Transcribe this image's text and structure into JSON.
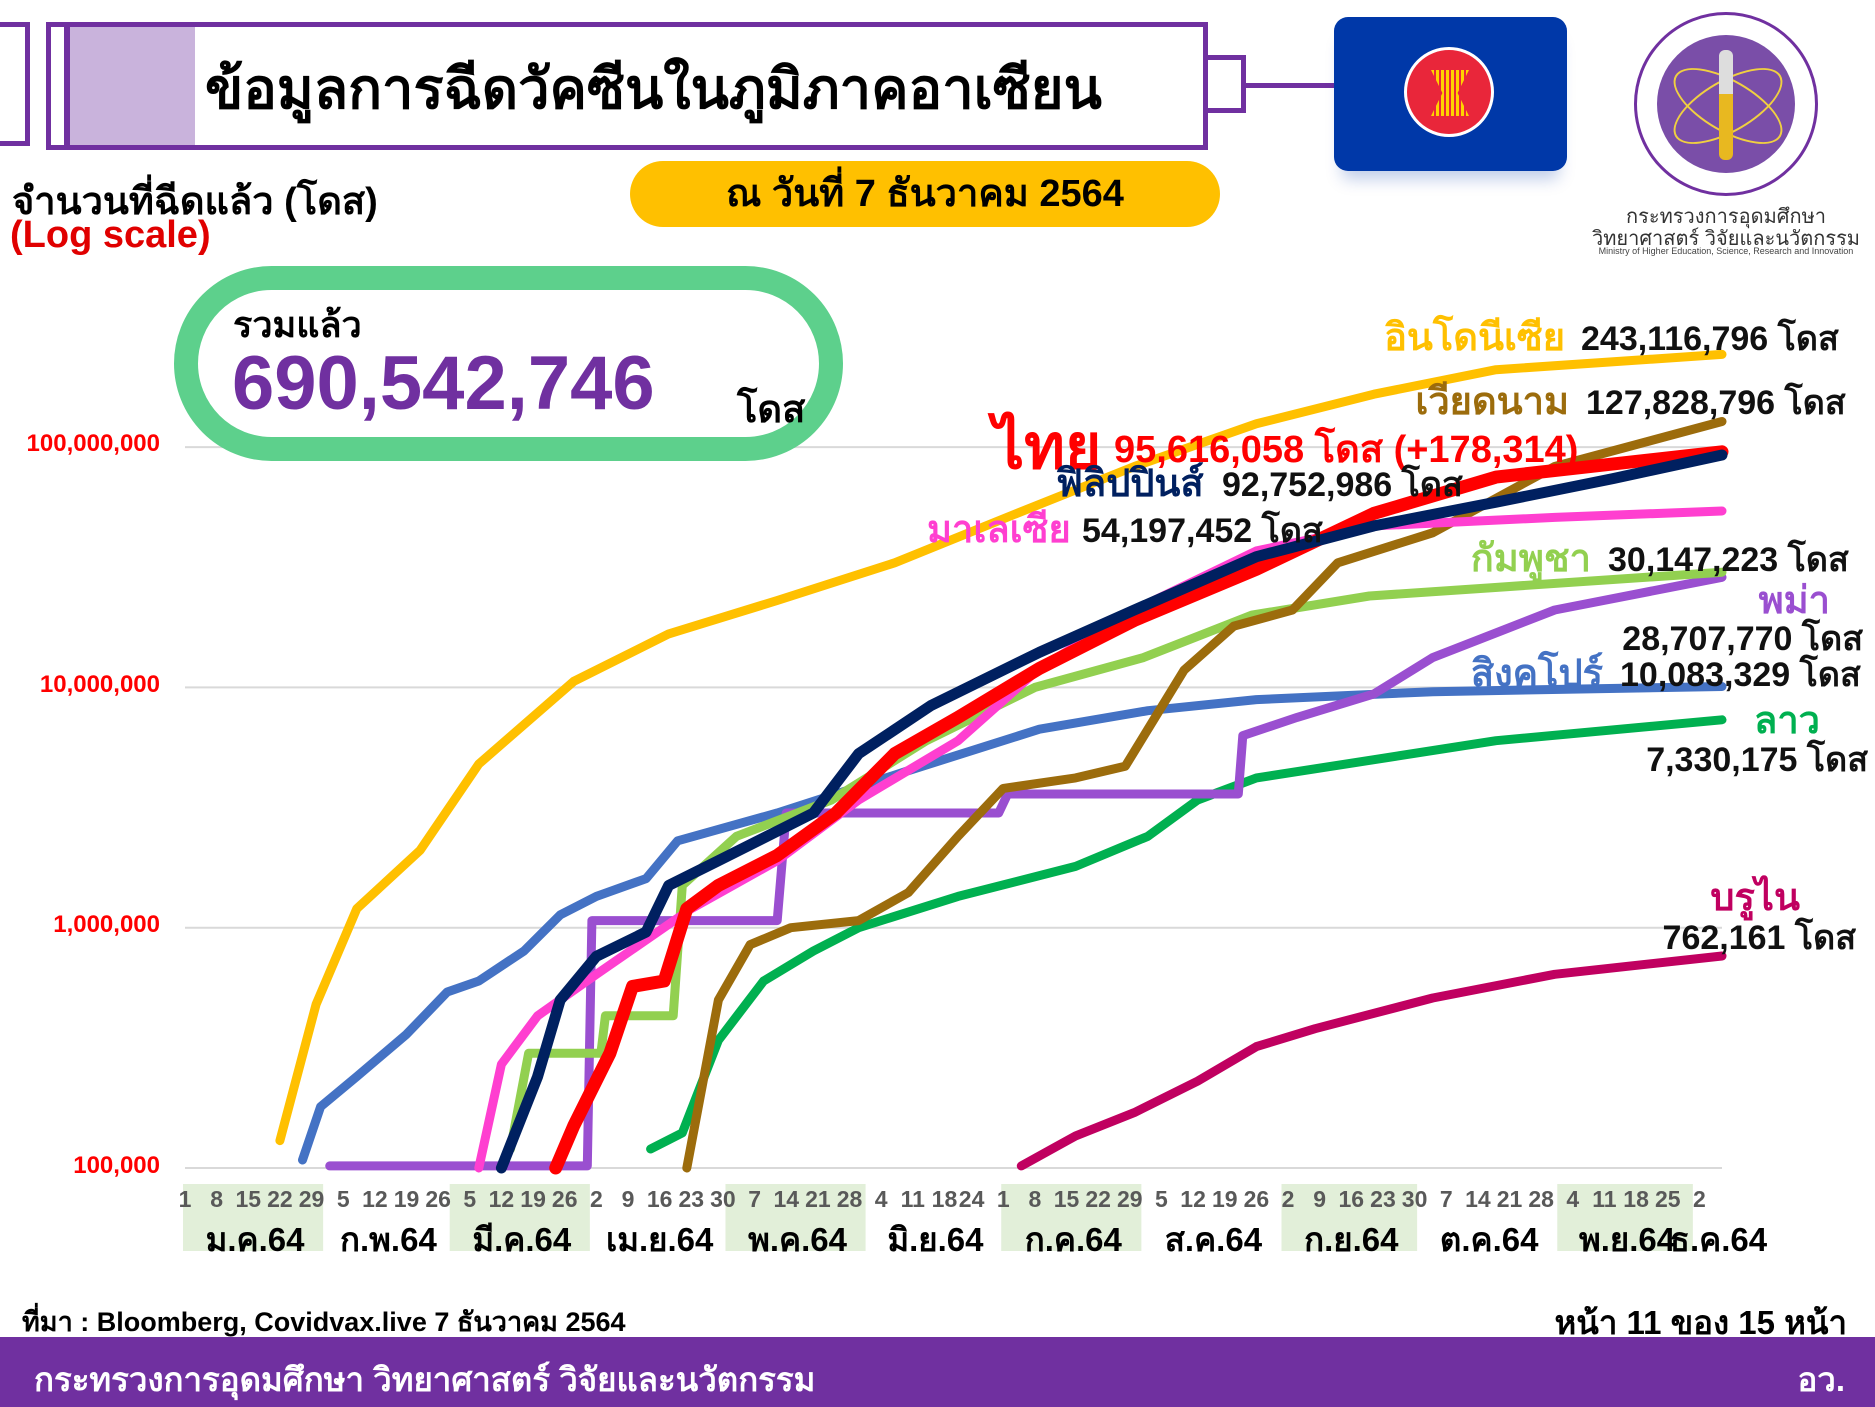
{
  "header": {
    "title": "ข้อมูลการฉีดวัคซีนในภูมิภาคอาเซียน",
    "as_of": "ณ วันที่ 7 ธันวาคม 2564",
    "y_caption": "จำนวนที่ฉีดแล้ว (โดส)",
    "scale_note": "(Log scale)",
    "ministry_th_1": "กระทรวงการอุดมศึกษา",
    "ministry_th_2": "วิทยาศาสตร์ วิจัยและนวัตกรรม",
    "ministry_en": "Ministry of Higher Education, Science, Research and Innovation"
  },
  "total": {
    "label": "รวมแล้ว",
    "value": "690,542,746",
    "unit": "โดส"
  },
  "footer": {
    "source": "ที่มา : Bloomberg, Covidvax.live 7 ธันวาคม 2564",
    "page": "หน้า 11 ของ 15 หน้า",
    "org": "กระทรวงการอุดมศึกษา วิทยาศาสตร์ วิจัยและนวัตกรรม",
    "org_short": "อว."
  },
  "colors": {
    "syringe": "#7030a0",
    "plunger_fill": "#c9b3dc",
    "date_pill": "#ffc000",
    "total_ring": "#5dd08c",
    "total_text": "#7030a0",
    "footer_bar": "#7030a0",
    "asean_blue": "#0038a8",
    "asean_red": "#e9263a",
    "grid": "#d9d9d9",
    "month_band": "#e2efd9",
    "ytick": "#ff0000"
  },
  "chart_data": {
    "type": "line",
    "yscale": "log",
    "ylim": [
      100000,
      300000000
    ],
    "xlim": [
      "2021-01-01",
      "2021-12-07"
    ],
    "grid": true,
    "yticks": [
      {
        "value": 100000,
        "label": "100,000"
      },
      {
        "value": 1000000,
        "label": "1,000,000"
      },
      {
        "value": 10000000,
        "label": "10,000,000"
      },
      {
        "value": 100000000,
        "label": "100,000,000"
      }
    ],
    "xticks": [
      {
        "label": "ม.ค.64",
        "month": 1,
        "days": [
          "1",
          "8",
          "15",
          "22",
          "29"
        ],
        "shaded": true
      },
      {
        "label": "ก.พ.64",
        "month": 2,
        "days": [
          "5",
          "12",
          "19",
          "26"
        ],
        "shaded": false
      },
      {
        "label": "มี.ค.64",
        "month": 3,
        "days": [
          "5",
          "12",
          "19",
          "26"
        ],
        "shaded": true
      },
      {
        "label": "เม.ย.64",
        "month": 4,
        "days": [
          "2",
          "9",
          "16",
          "23",
          "30"
        ],
        "shaded": false
      },
      {
        "label": "พ.ค.64",
        "month": 5,
        "days": [
          "7",
          "14",
          "21",
          "28"
        ],
        "shaded": true
      },
      {
        "label": "มิ.ย.64",
        "month": 6,
        "days": [
          "4",
          "11",
          "18",
          "24"
        ],
        "shaded": false
      },
      {
        "label": "ก.ค.64",
        "month": 7,
        "days": [
          "1",
          "8",
          "15",
          "22",
          "29"
        ],
        "shaded": true
      },
      {
        "label": "ส.ค.64",
        "month": 8,
        "days": [
          "5",
          "12",
          "19",
          "26"
        ],
        "shaded": false
      },
      {
        "label": "ก.ย.64",
        "month": 9,
        "days": [
          "2",
          "9",
          "16",
          "23",
          "30"
        ],
        "shaded": true
      },
      {
        "label": "ต.ค.64",
        "month": 10,
        "days": [
          "7",
          "14",
          "21",
          "28"
        ],
        "shaded": false
      },
      {
        "label": "พ.ย.64",
        "month": 11,
        "days": [
          "4",
          "11",
          "18",
          "25"
        ],
        "shaded": true
      },
      {
        "label": "ธ.ค.64",
        "month": 12,
        "days": [
          "2"
        ],
        "shaded": false
      }
    ],
    "series": [
      {
        "name": "อินโดนีเซีย",
        "value_label": "243,116,796 โดส",
        "color": "#ffc000",
        "points": [
          [
            "2021-01-22",
            130000
          ],
          [
            "2021-01-30",
            480000
          ],
          [
            "2021-02-08",
            1200000
          ],
          [
            "2021-02-22",
            2100000
          ],
          [
            "2021-03-07",
            4800000
          ],
          [
            "2021-03-28",
            10600000
          ],
          [
            "2021-04-18",
            16700000
          ],
          [
            "2021-05-12",
            23000000
          ],
          [
            "2021-06-07",
            33000000
          ],
          [
            "2021-07-04",
            53000000
          ],
          [
            "2021-07-30",
            83000000
          ],
          [
            "2021-08-26",
            125000000
          ],
          [
            "2021-09-21",
            166000000
          ],
          [
            "2021-10-18",
            210000000
          ],
          [
            "2021-12-07",
            243116796
          ]
        ]
      },
      {
        "name": "เวียดนาม",
        "value_label": "127,828,796 โดส",
        "color": "#9c6c0c",
        "points": [
          [
            "2021-04-22",
            100000
          ],
          [
            "2021-04-29",
            500000
          ],
          [
            "2021-05-06",
            850000
          ],
          [
            "2021-05-15",
            1000000
          ],
          [
            "2021-05-30",
            1070000
          ],
          [
            "2021-06-10",
            1400000
          ],
          [
            "2021-06-21",
            2400000
          ],
          [
            "2021-07-01",
            3800000
          ],
          [
            "2021-07-17",
            4200000
          ],
          [
            "2021-07-28",
            4700000
          ],
          [
            "2021-08-10",
            11800000
          ],
          [
            "2021-08-21",
            18000000
          ],
          [
            "2021-09-03",
            21000000
          ],
          [
            "2021-09-13",
            33000000
          ],
          [
            "2021-10-04",
            44000000
          ],
          [
            "2021-10-31",
            83000000
          ],
          [
            "2021-12-07",
            127828796
          ]
        ]
      },
      {
        "name": "ไทย",
        "value_label": "95,616,058 โดส (+178,314)",
        "color": "#ff0000",
        "points": [
          [
            "2021-03-24",
            100000
          ],
          [
            "2021-03-28",
            150000
          ],
          [
            "2021-04-05",
            300000
          ],
          [
            "2021-04-10",
            570000
          ],
          [
            "2021-04-17",
            600000
          ],
          [
            "2021-04-22",
            1200000
          ],
          [
            "2021-04-29",
            1500000
          ],
          [
            "2021-05-12",
            2000000
          ],
          [
            "2021-05-25",
            3000000
          ],
          [
            "2021-06-07",
            5300000
          ],
          [
            "2021-06-21",
            7500000
          ],
          [
            "2021-07-09",
            12000000
          ],
          [
            "2021-07-30",
            19000000
          ],
          [
            "2021-08-26",
            31000000
          ],
          [
            "2021-09-21",
            53000000
          ],
          [
            "2021-10-18",
            75000000
          ],
          [
            "2021-12-07",
            95616058
          ]
        ]
      },
      {
        "name": "ฟิลิปปินส์",
        "value_label": "92,752,986 โดส",
        "color": "#002060",
        "points": [
          [
            "2021-03-12",
            100000
          ],
          [
            "2021-03-20",
            240000
          ],
          [
            "2021-03-25",
            500000
          ],
          [
            "2021-04-02",
            760000
          ],
          [
            "2021-04-13",
            960000
          ],
          [
            "2021-04-18",
            1500000
          ],
          [
            "2021-04-29",
            1900000
          ],
          [
            "2021-05-20",
            3000000
          ],
          [
            "2021-05-30",
            5300000
          ],
          [
            "2021-06-15",
            8400000
          ],
          [
            "2021-07-09",
            14000000
          ],
          [
            "2021-07-30",
            21000000
          ],
          [
            "2021-08-26",
            35000000
          ],
          [
            "2021-09-21",
            47000000
          ],
          [
            "2021-10-18",
            59000000
          ],
          [
            "2021-11-13",
            74000000
          ],
          [
            "2021-12-07",
            92752986
          ]
        ]
      },
      {
        "name": "มาเลเซีย",
        "value_label": "54,197,452 โดส",
        "color": "#ff3fd0",
        "points": [
          [
            "2021-03-07",
            100000
          ],
          [
            "2021-03-12",
            270000
          ],
          [
            "2021-03-20",
            430000
          ],
          [
            "2021-04-02",
            640000
          ],
          [
            "2021-04-23",
            1200000
          ],
          [
            "2021-05-12",
            1900000
          ],
          [
            "2021-05-30",
            3400000
          ],
          [
            "2021-06-21",
            6000000
          ],
          [
            "2021-07-09",
            12000000
          ],
          [
            "2021-07-30",
            21000000
          ],
          [
            "2021-08-26",
            37000000
          ],
          [
            "2021-09-21",
            47000000
          ],
          [
            "2021-10-31",
            51000000
          ],
          [
            "2021-12-07",
            54197452
          ]
        ]
      },
      {
        "name": "กัมพูชา",
        "value_label": "30,147,223 โดส",
        "color": "#92d050",
        "points": [
          [
            "2021-03-14",
            120000
          ],
          [
            "2021-03-18",
            300000
          ],
          [
            "2021-04-03",
            300000
          ],
          [
            "2021-04-04",
            430000
          ],
          [
            "2021-04-19",
            430000
          ],
          [
            "2021-04-21",
            1500000
          ],
          [
            "2021-05-03",
            2400000
          ],
          [
            "2021-05-24",
            3400000
          ],
          [
            "2021-06-14",
            6000000
          ],
          [
            "2021-07-08",
            10000000
          ],
          [
            "2021-08-01",
            13300000
          ],
          [
            "2021-08-25",
            20000000
          ],
          [
            "2021-09-20",
            24000000
          ],
          [
            "2021-10-17",
            26000000
          ],
          [
            "2021-12-07",
            30147223
          ]
        ]
      },
      {
        "name": "พม่า",
        "value_label": "28,707,770 โดส",
        "color": "#9a4fd0",
        "points": [
          [
            "2021-02-02",
            102000
          ],
          [
            "2021-03-31",
            102000
          ],
          [
            "2021-04-01",
            1070000
          ],
          [
            "2021-05-12",
            1070000
          ],
          [
            "2021-05-14",
            3000000
          ],
          [
            "2021-06-30",
            3000000
          ],
          [
            "2021-07-02",
            3600000
          ],
          [
            "2021-08-22",
            3600000
          ],
          [
            "2021-08-23",
            6300000
          ],
          [
            "2021-09-04",
            7500000
          ],
          [
            "2021-09-21",
            9400000
          ],
          [
            "2021-10-04",
            13300000
          ],
          [
            "2021-10-31",
            21000000
          ],
          [
            "2021-12-07",
            28707770
          ]
        ]
      },
      {
        "name": "สิงคโปร์",
        "value_label": "10,083,329 โดส",
        "color": "#4472c4",
        "points": [
          [
            "2021-01-27",
            108000
          ],
          [
            "2021-01-31",
            180000
          ],
          [
            "2021-02-08",
            240000
          ],
          [
            "2021-02-19",
            360000
          ],
          [
            "2021-02-28",
            540000
          ],
          [
            "2021-03-07",
            600000
          ],
          [
            "2021-03-17",
            800000
          ],
          [
            "2021-03-25",
            1130000
          ],
          [
            "2021-04-02",
            1350000
          ],
          [
            "2021-04-13",
            1600000
          ],
          [
            "2021-04-20",
            2300000
          ],
          [
            "2021-05-12",
            3000000
          ],
          [
            "2021-06-10",
            4500000
          ],
          [
            "2021-07-09",
            6700000
          ],
          [
            "2021-08-02",
            8000000
          ],
          [
            "2021-08-26",
            8900000
          ],
          [
            "2021-10-04",
            9600000
          ],
          [
            "2021-12-07",
            10083329
          ]
        ]
      },
      {
        "name": "ลาว",
        "value_label": "7,330,175 โดส",
        "color": "#00b050",
        "points": [
          [
            "2021-04-14",
            120000
          ],
          [
            "2021-04-21",
            140000
          ],
          [
            "2021-04-29",
            340000
          ],
          [
            "2021-05-09",
            600000
          ],
          [
            "2021-05-20",
            800000
          ],
          [
            "2021-05-30",
            1000000
          ],
          [
            "2021-06-21",
            1350000
          ],
          [
            "2021-07-17",
            1800000
          ],
          [
            "2021-08-02",
            2400000
          ],
          [
            "2021-08-13",
            3400000
          ],
          [
            "2021-08-26",
            4200000
          ],
          [
            "2021-09-21",
            5000000
          ],
          [
            "2021-10-18",
            6000000
          ],
          [
            "2021-12-07",
            7330175
          ]
        ]
      },
      {
        "name": "บรูไน",
        "value_label": "762,161 โดส",
        "color": "#c00060",
        "points": [
          [
            "2021-07-05",
            102000
          ],
          [
            "2021-07-17",
            136000
          ],
          [
            "2021-07-30",
            170000
          ],
          [
            "2021-08-13",
            230000
          ],
          [
            "2021-08-26",
            320000
          ],
          [
            "2021-09-08",
            380000
          ],
          [
            "2021-10-04",
            510000
          ],
          [
            "2021-10-31",
            640000
          ],
          [
            "2021-12-07",
            762161
          ]
        ]
      }
    ]
  }
}
